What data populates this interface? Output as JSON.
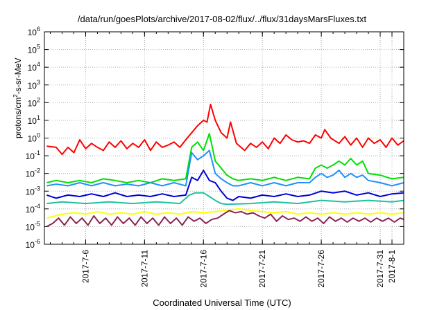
{
  "chart_data": {
    "type": "line",
    "title": "/data/run/goesPlots/archive/2017-08-02/flux/../flux/31daysMarsFluxes.txt",
    "xlabel": "Coordinated Universal Time (UTC)",
    "ylabel": "protons/cm2-s-sr-MeV",
    "y_scale": "log",
    "ylim": [
      1e-06,
      1000000.0
    ],
    "xlim": [
      2.5,
      33.0
    ],
    "y_ticks": [
      {
        "base": "10",
        "exp": "-6",
        "value": 1e-06
      },
      {
        "base": "10",
        "exp": "-5",
        "value": 1e-05
      },
      {
        "base": "10",
        "exp": "-4",
        "value": 0.0001
      },
      {
        "base": "10",
        "exp": "-3",
        "value": 0.001
      },
      {
        "base": "10",
        "exp": "-2",
        "value": 0.01
      },
      {
        "base": "10",
        "exp": "-1",
        "value": 0.1
      },
      {
        "base": "10",
        "exp": "0",
        "value": 1
      },
      {
        "base": "10",
        "exp": "1",
        "value": 10
      },
      {
        "base": "10",
        "exp": "2",
        "value": 100
      },
      {
        "base": "10",
        "exp": "3",
        "value": 1000
      },
      {
        "base": "10",
        "exp": "4",
        "value": 10000
      },
      {
        "base": "10",
        "exp": "5",
        "value": 100000
      },
      {
        "base": "10",
        "exp": "6",
        "value": 1000000
      }
    ],
    "x_ticks": [
      {
        "label": "2017-7-6",
        "day": 6
      },
      {
        "label": "2017-7-11",
        "day": 11
      },
      {
        "label": "2017-7-16",
        "day": 16
      },
      {
        "label": "2017-7-21",
        "day": 21
      },
      {
        "label": "2017-7-26",
        "day": 26
      },
      {
        "label": "2017-7-31",
        "day": 31
      },
      {
        "label": "2017-8-1",
        "day": 32
      }
    ],
    "grid": true,
    "series": [
      {
        "color": "#ff0000",
        "x": [
          2.7,
          3.5,
          4.0,
          4.5,
          5.0,
          5.5,
          6.0,
          6.5,
          7.0,
          7.5,
          8.0,
          8.5,
          9.0,
          9.5,
          10.0,
          10.5,
          11.0,
          11.5,
          12.0,
          12.5,
          13.0,
          13.5,
          14.0,
          14.5,
          15.0,
          15.5,
          16.0,
          16.3,
          16.6,
          17.0,
          17.5,
          18.0,
          18.3,
          18.8,
          19.5,
          20.0,
          20.5,
          21.0,
          21.5,
          22.0,
          22.5,
          23.0,
          23.5,
          24.0,
          24.5,
          25.0,
          25.5,
          26.0,
          26.3,
          26.8,
          27.5,
          28.0,
          28.5,
          29.0,
          29.5,
          30.0,
          30.5,
          31.0,
          31.5,
          32.0,
          32.5,
          33.0
        ],
        "y": [
          0.35,
          0.3,
          0.12,
          0.3,
          0.15,
          0.8,
          0.25,
          0.5,
          0.3,
          0.2,
          0.6,
          0.3,
          0.7,
          0.25,
          0.5,
          0.3,
          0.8,
          0.2,
          0.6,
          0.3,
          0.4,
          0.6,
          0.3,
          0.8,
          2.0,
          5.0,
          10.0,
          8.0,
          80.0,
          10.0,
          2.0,
          1.0,
          8.0,
          0.5,
          0.2,
          0.5,
          0.3,
          0.6,
          0.25,
          1.0,
          0.5,
          1.5,
          0.8,
          0.6,
          0.7,
          0.5,
          1.5,
          1.0,
          3.0,
          1.0,
          0.5,
          1.2,
          0.4,
          1.0,
          0.3,
          1.0,
          0.5,
          0.8,
          0.3,
          1.0,
          0.4,
          0.7
        ]
      },
      {
        "color": "#00e000",
        "x": [
          2.7,
          3.5,
          4.5,
          5.5,
          6.5,
          7.5,
          8.5,
          9.5,
          10.5,
          11.5,
          12.5,
          13.5,
          14.5,
          15.0,
          15.5,
          16.0,
          16.5,
          17.0,
          17.5,
          18.0,
          18.5,
          19.0,
          20.0,
          21.0,
          22.0,
          23.0,
          24.0,
          25.0,
          25.5,
          26.0,
          26.5,
          27.0,
          27.5,
          28.0,
          28.5,
          29.0,
          29.5,
          30.0,
          31.0,
          32.0,
          33.0
        ],
        "y": [
          0.003,
          0.004,
          0.003,
          0.004,
          0.003,
          0.005,
          0.004,
          0.003,
          0.004,
          0.003,
          0.005,
          0.004,
          0.005,
          0.3,
          0.6,
          0.2,
          1.8,
          0.05,
          0.02,
          0.008,
          0.005,
          0.004,
          0.005,
          0.004,
          0.006,
          0.004,
          0.006,
          0.005,
          0.02,
          0.03,
          0.02,
          0.03,
          0.05,
          0.03,
          0.07,
          0.03,
          0.05,
          0.01,
          0.008,
          0.005,
          0.006
        ]
      },
      {
        "color": "#1e90ff",
        "x": [
          2.7,
          3.5,
          4.5,
          5.5,
          6.5,
          7.5,
          8.5,
          9.5,
          10.5,
          11.5,
          12.5,
          13.5,
          14.5,
          15.0,
          15.5,
          16.0,
          16.5,
          17.0,
          17.5,
          18.0,
          18.5,
          19.0,
          20.0,
          21.0,
          22.0,
          23.0,
          24.0,
          25.0,
          25.5,
          26.0,
          26.5,
          27.0,
          27.5,
          28.0,
          28.5,
          29.0,
          29.5,
          30.0,
          31.0,
          32.0,
          33.0
        ],
        "y": [
          0.002,
          0.0025,
          0.002,
          0.003,
          0.002,
          0.003,
          0.002,
          0.0025,
          0.002,
          0.003,
          0.002,
          0.003,
          0.002,
          0.15,
          0.06,
          0.1,
          0.2,
          0.01,
          0.005,
          0.003,
          0.002,
          0.002,
          0.003,
          0.002,
          0.003,
          0.002,
          0.003,
          0.003,
          0.006,
          0.01,
          0.006,
          0.008,
          0.015,
          0.006,
          0.01,
          0.006,
          0.008,
          0.004,
          0.003,
          0.002,
          0.003
        ]
      },
      {
        "color": "#0000d8",
        "x": [
          2.7,
          3.5,
          4.5,
          5.5,
          6.5,
          7.5,
          8.5,
          9.5,
          10.5,
          11.5,
          12.5,
          13.5,
          14.5,
          15.0,
          15.5,
          16.0,
          16.5,
          17.0,
          17.5,
          18.0,
          18.5,
          19.0,
          20.0,
          21.0,
          22.0,
          23.0,
          24.0,
          25.0,
          26.0,
          27.0,
          28.0,
          29.0,
          30.0,
          31.0,
          32.0,
          33.0
        ],
        "y": [
          0.0006,
          0.0004,
          0.0006,
          0.0005,
          0.0007,
          0.0005,
          0.0008,
          0.0005,
          0.0006,
          0.0005,
          0.0007,
          0.0005,
          0.0006,
          0.006,
          0.004,
          0.015,
          0.004,
          0.003,
          0.001,
          0.0004,
          0.0003,
          0.0005,
          0.0004,
          0.0006,
          0.0005,
          0.0007,
          0.0005,
          0.0006,
          0.001,
          0.0008,
          0.001,
          0.0006,
          0.0008,
          0.0005,
          0.0007,
          0.0008
        ]
      },
      {
        "color": "#20c0a0",
        "x": [
          2.7,
          4.0,
          6.0,
          8.0,
          10.0,
          12.0,
          14.0,
          14.8,
          15.3,
          16.0,
          16.5,
          17.0,
          17.5,
          18.0,
          20.0,
          22.0,
          24.0,
          26.0,
          28.0,
          30.0,
          32.0,
          33.0
        ],
        "y": [
          0.0002,
          0.00025,
          0.0002,
          0.00025,
          0.0002,
          0.00025,
          0.0002,
          0.0006,
          0.0008,
          0.0008,
          0.0005,
          0.0003,
          0.0002,
          0.00018,
          0.0002,
          0.00025,
          0.0002,
          0.0003,
          0.00025,
          0.0003,
          0.00025,
          0.0003
        ]
      },
      {
        "color": "#ffff00",
        "x": [
          2.7,
          4.0,
          5.0,
          6.0,
          7.0,
          8.0,
          9.0,
          10.0,
          11.0,
          12.0,
          13.0,
          14.0,
          15.0,
          16.0,
          17.0,
          18.0,
          19.0,
          20.0,
          21.0,
          22.0,
          23.0,
          24.0,
          25.0,
          26.0,
          27.0,
          28.0,
          29.0,
          30.0,
          31.0,
          32.0,
          33.0
        ],
        "y": [
          3e-05,
          5e-05,
          6e-05,
          5e-05,
          7e-05,
          5e-05,
          6e-05,
          5e-05,
          7e-05,
          5e-05,
          6e-05,
          5e-05,
          7e-05,
          6e-05,
          7e-05,
          8e-05,
          0.0001,
          8e-05,
          7e-05,
          6e-05,
          7e-05,
          5e-05,
          6e-05,
          5e-05,
          6e-05,
          5e-05,
          6e-05,
          5e-05,
          6e-05,
          5e-05,
          6e-05
        ]
      },
      {
        "color": "#8b2252",
        "x": [
          2.7,
          3.2,
          3.7,
          4.2,
          4.7,
          5.2,
          5.7,
          6.2,
          6.7,
          7.2,
          7.7,
          8.2,
          8.7,
          9.2,
          9.7,
          10.2,
          10.7,
          11.2,
          11.7,
          12.2,
          12.7,
          13.2,
          13.7,
          14.2,
          14.7,
          15.2,
          15.7,
          16.2,
          16.7,
          17.2,
          17.7,
          18.2,
          18.7,
          19.2,
          19.7,
          20.2,
          20.7,
          21.2,
          21.7,
          22.2,
          22.7,
          23.2,
          23.7,
          24.2,
          24.7,
          25.2,
          25.7,
          26.2,
          26.7,
          27.2,
          27.7,
          28.2,
          28.7,
          29.2,
          29.7,
          30.2,
          30.7,
          31.2,
          31.7,
          32.2,
          32.7,
          33.0
        ],
        "y": [
          1e-05,
          1.5e-05,
          3e-05,
          1.2e-05,
          3.5e-05,
          1.5e-05,
          3e-05,
          1.2e-05,
          4e-05,
          1.5e-05,
          3e-05,
          1.2e-05,
          3.5e-05,
          1.5e-05,
          3e-05,
          1.2e-05,
          3.5e-05,
          1.5e-05,
          3e-05,
          1.2e-05,
          3.5e-05,
          1.5e-05,
          3e-05,
          1.2e-05,
          3.5e-05,
          2e-05,
          3e-05,
          1.5e-05,
          2.5e-05,
          3e-05,
          5e-05,
          8e-05,
          6e-05,
          7e-05,
          5e-05,
          6e-05,
          4e-05,
          3e-05,
          5e-05,
          2e-05,
          4e-05,
          2.5e-05,
          3e-05,
          2e-05,
          3.5e-05,
          2e-05,
          3e-05,
          1.5e-05,
          3.5e-05,
          2e-05,
          3e-05,
          1.8e-05,
          3e-05,
          2e-05,
          3e-05,
          1.8e-05,
          3e-05,
          2e-05,
          3e-05,
          1.8e-05,
          3e-05,
          2.5e-05
        ]
      }
    ]
  }
}
